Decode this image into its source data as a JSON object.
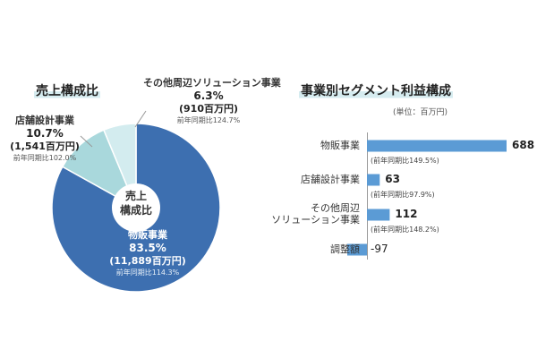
{
  "left": {
    "title": "売上構成比",
    "center_label_1": "売上",
    "center_label_2": "構成比",
    "segments": [
      {
        "name": "物販事業",
        "pct": "83.5%",
        "amount": "(11,889百万円)",
        "yoy": "前年同期比114.3%",
        "color": "#3d6fb0"
      },
      {
        "name": "店舗設計事業",
        "pct": "10.7%",
        "amount": "(1,541百万円)",
        "yoy": "前年同期比102.0%",
        "color": "#a9d8dc"
      },
      {
        "name": "その他周辺ソリューション事業",
        "pct": "6.3%",
        "amount": "(910百万円)",
        "yoy": "前年同期比124.7%",
        "color": "#d3ecef"
      }
    ]
  },
  "right": {
    "title": "事業別セグメント利益構成",
    "unit": "(単位：百万円)",
    "bar_color": "#5b9bd5",
    "bars": [
      {
        "label_lines": [
          "物販事業"
        ],
        "value": "688",
        "yoy": "(前年同期比149.5%)"
      },
      {
        "label_lines": [
          "店舗設計事業"
        ],
        "value": "63",
        "yoy": "(前年同期比97.9%)"
      },
      {
        "label_lines": [
          "その他周辺",
          "ソリューション事業"
        ],
        "value": "112",
        "yoy": "(前年同期比148.2%)"
      },
      {
        "label_lines": [
          "調整額"
        ],
        "value": "-97",
        "yoy": ""
      }
    ]
  },
  "chart_data": [
    {
      "type": "pie",
      "title": "売上構成比",
      "categories": [
        "物販事業",
        "店舗設計事業",
        "その他周辺ソリューション事業"
      ],
      "values": [
        83.5,
        10.7,
        6.3
      ],
      "amounts_million_yen": [
        11889,
        1541,
        910
      ],
      "yoy_percent": [
        114.3,
        102.0,
        124.7
      ]
    },
    {
      "type": "bar",
      "orientation": "horizontal",
      "title": "事業別セグメント利益構成",
      "unit": "百万円",
      "categories": [
        "物販事業",
        "店舗設計事業",
        "その他周辺ソリューション事業",
        "調整額"
      ],
      "values": [
        688,
        63,
        112,
        -97
      ],
      "yoy_percent": [
        149.5,
        97.9,
        148.2,
        null
      ]
    }
  ]
}
